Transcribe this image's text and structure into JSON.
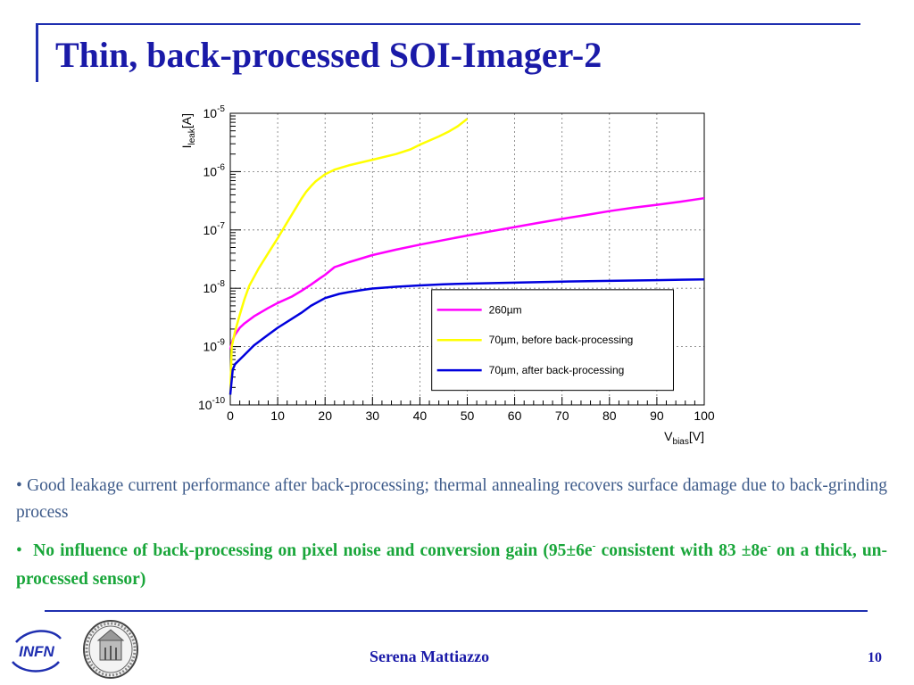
{
  "slide": {
    "title": "Thin, back-processed SOI-Imager-2",
    "author": "Serena Mattiazzo",
    "page_number": "10",
    "logo_text": "INFN",
    "bullets": [
      {
        "marker": "•",
        "text": "Good leakage current performance after back-processing; thermal annealing recovers surface damage due to back-grinding process",
        "color": "#3e5b8a"
      },
      {
        "marker": "•",
        "text_part1": "No influence of back-processing on pixel noise and conversion gain (95±6e",
        "sup1": "-",
        "text_part2": " consistent with 83 ±8e",
        "sup2": "-",
        "text_part3": " on a thick, un-processed sensor)",
        "color": "#19a63a"
      }
    ]
  },
  "chart_data": {
    "type": "line",
    "xlabel": "V",
    "xlabel_sub": "bias",
    "xlabel_unit": "[V]",
    "ylabel": "I",
    "ylabel_sub": "leak",
    "ylabel_unit": "[A]",
    "xlim": [
      0,
      100
    ],
    "ylim": [
      1e-10,
      1e-05
    ],
    "y_scale": "log",
    "grid": true,
    "x_ticks": [
      "0",
      "10",
      "20",
      "30",
      "40",
      "50",
      "60",
      "70",
      "80",
      "90",
      "100"
    ],
    "y_ticks": [
      {
        "base": "10",
        "exp": "-10",
        "value": 1e-10
      },
      {
        "base": "10",
        "exp": "-9",
        "value": 1e-09
      },
      {
        "base": "10",
        "exp": "-8",
        "value": 1e-08
      },
      {
        "base": "10",
        "exp": "-7",
        "value": 1e-07
      },
      {
        "base": "10",
        "exp": "-6",
        "value": 1e-06
      },
      {
        "base": "10",
        "exp": "-5",
        "value": 1e-05
      }
    ],
    "legend_position": "lower-right",
    "series": [
      {
        "name": "260µm",
        "color": "#ff00ff",
        "x": [
          0,
          0.5,
          1,
          2,
          3,
          5,
          8,
          10,
          13,
          15,
          17,
          19,
          20,
          22,
          25,
          30,
          35,
          40,
          45,
          50,
          55,
          60,
          65,
          70,
          75,
          80,
          85,
          90,
          95,
          100
        ],
        "y": [
          9e-10,
          1.3e-09,
          1.6e-09,
          2.1e-09,
          2.5e-09,
          3.3e-09,
          4.6e-09,
          5.6e-09,
          7.2e-09,
          9e-09,
          1.15e-08,
          1.5e-08,
          1.7e-08,
          2.3e-08,
          2.8e-08,
          3.7e-08,
          4.6e-08,
          5.6e-08,
          6.7e-08,
          8e-08,
          9.5e-08,
          1.12e-07,
          1.32e-07,
          1.55e-07,
          1.8e-07,
          2.1e-07,
          2.4e-07,
          2.7e-07,
          3.05e-07,
          3.5e-07
        ]
      },
      {
        "name": "70µm, before back-processing",
        "color": "#ffff00",
        "x": [
          0,
          0.3,
          1,
          2,
          3,
          4,
          6,
          8,
          10,
          12,
          14,
          15,
          16,
          17,
          18,
          20,
          22,
          25,
          30,
          35,
          38,
          40,
          42,
          44,
          46,
          48,
          50
        ],
        "y": [
          1.5e-10,
          1e-09,
          1.8e-09,
          3.5e-09,
          6.5e-09,
          1.1e-08,
          2.2e-08,
          4e-08,
          7.2e-08,
          1.35e-07,
          2.5e-07,
          3.4e-07,
          4.5e-07,
          5.6e-07,
          6.8e-07,
          9e-07,
          1.08e-06,
          1.28e-06,
          1.6e-06,
          2e-06,
          2.4e-06,
          2.9e-06,
          3.4e-06,
          4e-06,
          4.8e-06,
          6e-06,
          8e-06
        ]
      },
      {
        "name": "70µm, after back-processing",
        "color": "#0000dd",
        "x": [
          0,
          0.5,
          1,
          2,
          3,
          5,
          8,
          10,
          13,
          15,
          17,
          20,
          23,
          25,
          28,
          30,
          35,
          40,
          45,
          50,
          60,
          70,
          80,
          90,
          100
        ],
        "y": [
          1.5e-10,
          4e-10,
          5e-10,
          6e-10,
          7.2e-10,
          1.05e-09,
          1.6e-09,
          2.1e-09,
          3e-09,
          3.8e-09,
          5e-09,
          6.8e-09,
          8e-09,
          8.6e-09,
          9.4e-09,
          9.9e-09,
          1.06e-08,
          1.12e-08,
          1.17e-08,
          1.2e-08,
          1.25e-08,
          1.3e-08,
          1.34e-08,
          1.38e-08,
          1.42e-08
        ]
      }
    ]
  }
}
